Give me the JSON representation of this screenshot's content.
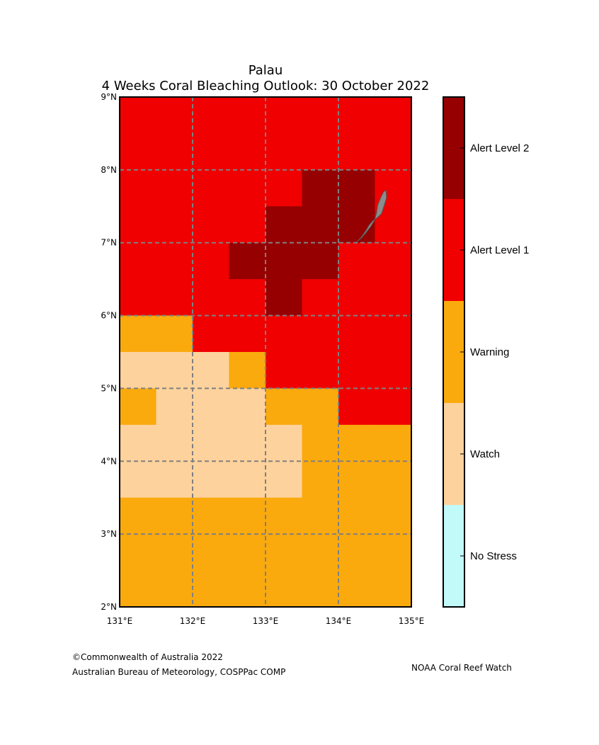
{
  "title": {
    "line1": "Palau",
    "line2": "4 Weeks Coral Bleaching Outlook: 30 October 2022"
  },
  "colors": {
    "no_stress": "#c2fafa",
    "watch": "#fed29c",
    "warning": "#faaa0d",
    "alert1": "#f00000",
    "alert2": "#960000",
    "land": "#8c8c8c",
    "grid": "#808080"
  },
  "map": {
    "lon_range": [
      131,
      135
    ],
    "lat_range": [
      2,
      9
    ],
    "lon_ticks": [
      131,
      132,
      133,
      134,
      135
    ],
    "lat_ticks": [
      2,
      3,
      4,
      5,
      6,
      7,
      8,
      9
    ],
    "lon_labels": [
      "131°E",
      "132°E",
      "133°E",
      "134°E",
      "135°E"
    ],
    "lat_labels": [
      "2°N",
      "3°N",
      "4°N",
      "5°N",
      "6°N",
      "7°N",
      "8°N",
      "9°N"
    ],
    "cell_size_deg": 0.5,
    "levels_note": "0=No Stress,1=Watch,2=Warning,3=Alert Level 1,4=Alert Level 2",
    "rows_north_to_south": [
      [
        3,
        3,
        3,
        3,
        3,
        3,
        3,
        3
      ],
      [
        3,
        3,
        3,
        3,
        3,
        3,
        3,
        3
      ],
      [
        3,
        3,
        3,
        3,
        3,
        4,
        4,
        3
      ],
      [
        3,
        3,
        3,
        3,
        4,
        4,
        4,
        3
      ],
      [
        3,
        3,
        3,
        4,
        4,
        4,
        3,
        3
      ],
      [
        3,
        3,
        3,
        3,
        4,
        3,
        3,
        3
      ],
      [
        2,
        2,
        3,
        3,
        3,
        3,
        3,
        3
      ],
      [
        1,
        1,
        1,
        2,
        3,
        3,
        3,
        3
      ],
      [
        2,
        1,
        1,
        1,
        2,
        2,
        3,
        3
      ],
      [
        1,
        1,
        1,
        1,
        1,
        2,
        2,
        2
      ],
      [
        1,
        1,
        1,
        1,
        1,
        2,
        2,
        2
      ],
      [
        2,
        2,
        2,
        2,
        2,
        2,
        2,
        2
      ],
      [
        2,
        2,
        2,
        2,
        2,
        2,
        2,
        2
      ],
      [
        2,
        2,
        2,
        2,
        2,
        2,
        2,
        2
      ]
    ],
    "land_outline_lonlat": [
      [
        134.65,
        7.72
      ],
      [
        134.66,
        7.62
      ],
      [
        134.63,
        7.52
      ],
      [
        134.59,
        7.4
      ],
      [
        134.54,
        7.35
      ],
      [
        134.47,
        7.3
      ],
      [
        134.42,
        7.24
      ],
      [
        134.38,
        7.17
      ],
      [
        134.33,
        7.1
      ],
      [
        134.28,
        7.04
      ],
      [
        134.24,
        7.0
      ],
      [
        134.32,
        7.07
      ],
      [
        134.38,
        7.14
      ],
      [
        134.44,
        7.22
      ],
      [
        134.49,
        7.3
      ],
      [
        134.52,
        7.4
      ],
      [
        134.54,
        7.52
      ],
      [
        134.58,
        7.62
      ],
      [
        134.62,
        7.7
      ]
    ]
  },
  "colorbar": {
    "labels": [
      "No Stress",
      "Watch",
      "Warning",
      "Alert Level 1",
      "Alert Level 2"
    ]
  },
  "footer": {
    "credit_line1": "©Commonwealth of Australia 2022",
    "credit_line2": "Australian Bureau of Meteorology, COSPPac COMP",
    "right": "NOAA Coral Reef Watch"
  }
}
